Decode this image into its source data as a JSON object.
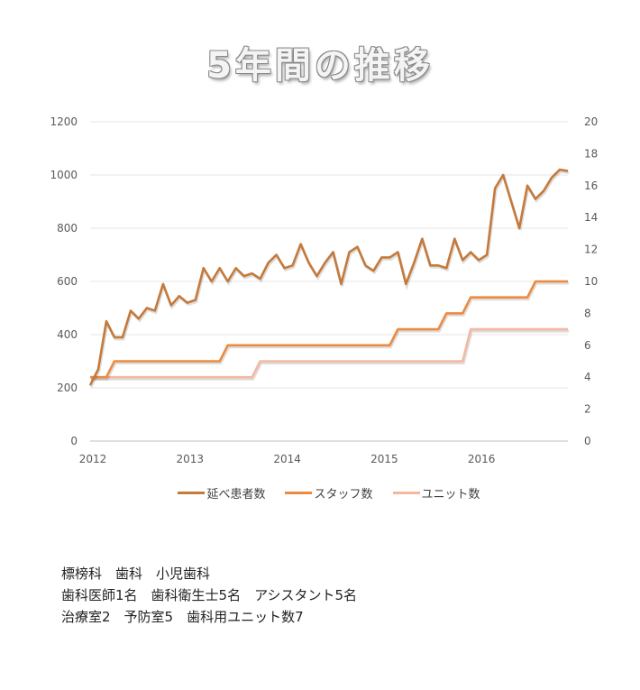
{
  "title": "5年間の推移",
  "chart_data": {
    "type": "line",
    "title": "5年間の推移",
    "x_tick_labels": [
      "2012",
      "2013",
      "2014",
      "2015",
      "2016"
    ],
    "x_start": "2012-01",
    "x_end": "2016-12",
    "x_interval": "monthly",
    "left_axis": {
      "ylim": [
        0,
        1200
      ],
      "ticks": [
        "0",
        "200",
        "400",
        "600",
        "800",
        "1000",
        "1200"
      ]
    },
    "right_axis": {
      "ylim": [
        0,
        20
      ],
      "ticks": [
        "0",
        "2",
        "4",
        "6",
        "8",
        "10",
        "12",
        "14",
        "16",
        "18",
        "20"
      ]
    },
    "grid": true,
    "legend_position": "bottom",
    "series": [
      {
        "name": "延べ患者数",
        "axis": "left",
        "color": "#c5793a",
        "values": [
          210,
          270,
          450,
          390,
          390,
          490,
          460,
          500,
          490,
          590,
          510,
          545,
          520,
          530,
          650,
          600,
          650,
          600,
          650,
          620,
          630,
          610,
          670,
          700,
          650,
          660,
          740,
          670,
          620,
          670,
          710,
          590,
          710,
          730,
          660,
          640,
          690,
          690,
          710,
          590,
          670,
          760,
          660,
          660,
          650,
          760,
          680,
          710,
          680,
          700,
          950,
          1000,
          900,
          800,
          960,
          910,
          940,
          990,
          1020,
          1015
        ]
      },
      {
        "name": "スタッフ数",
        "axis": "right",
        "color": "#ed8a3f",
        "values": [
          4,
          4,
          4,
          5,
          5,
          5,
          5,
          5,
          5,
          5,
          5,
          5,
          5,
          5,
          5,
          5,
          5,
          6,
          6,
          6,
          6,
          6,
          6,
          6,
          6,
          6,
          6,
          6,
          6,
          6,
          6,
          6,
          6,
          6,
          6,
          6,
          6,
          6,
          7,
          7,
          7,
          7,
          7,
          7,
          8,
          8,
          8,
          9,
          9,
          9,
          9,
          9,
          9,
          9,
          9,
          10,
          10,
          10,
          10,
          10
        ]
      },
      {
        "name": "ユニット数",
        "axis": "right",
        "color": "#f4b8a0",
        "values": [
          4,
          4,
          4,
          4,
          4,
          4,
          4,
          4,
          4,
          4,
          4,
          4,
          4,
          4,
          4,
          4,
          4,
          4,
          4,
          4,
          4,
          5,
          5,
          5,
          5,
          5,
          5,
          5,
          5,
          5,
          5,
          5,
          5,
          5,
          5,
          5,
          5,
          5,
          5,
          5,
          5,
          5,
          5,
          5,
          5,
          5,
          5,
          7,
          7,
          7,
          7,
          7,
          7,
          7,
          7,
          7,
          7,
          7,
          7,
          7
        ]
      }
    ]
  },
  "notes": [
    "標榜科　歯科　小児歯科",
    "歯科医師1名　歯科衛生士5名　アシスタント5名",
    "治療室2　予防室5　歯科用ユニット数7"
  ]
}
